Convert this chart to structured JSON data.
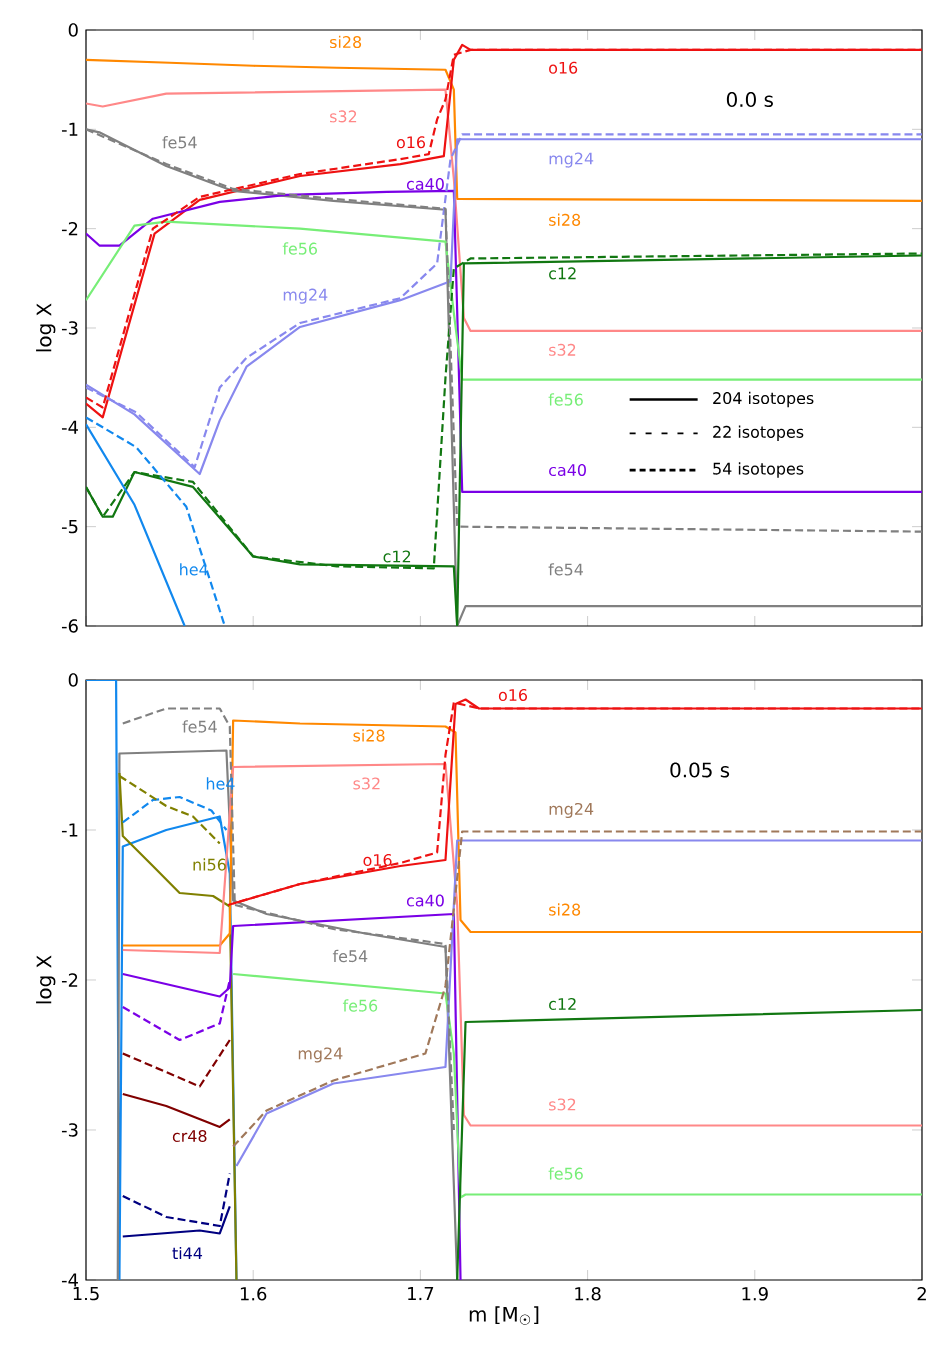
{
  "chart_data": [
    {
      "type": "line",
      "ylabel": "log X",
      "xlim": [
        1.5,
        2
      ],
      "ylim": [
        -6,
        0
      ],
      "xticks": [
        1.5,
        1.6,
        1.7,
        1.8,
        1.9,
        2
      ],
      "yticks": [
        0,
        -1,
        -2,
        -3,
        -4,
        -5,
        -6
      ],
      "tick_labels": "y",
      "annotations": [
        "0.0 s",
        "204 isotopes",
        "22 isotopes",
        "54 isotopes"
      ],
      "series": [
        {
          "name": "si28",
          "color": "#ff8800",
          "line_style": "solid",
          "x": [
            1.5,
            1.55,
            1.6,
            1.65,
            1.715,
            1.72,
            1.722,
            2
          ],
          "values": [
            -0.3,
            -0.33,
            -0.36,
            -0.38,
            -0.4,
            -0.6,
            -1.7,
            -1.72
          ]
        },
        {
          "name": "s32",
          "color": "#ff8888",
          "line_style": "solid",
          "x": [
            1.5,
            1.51,
            1.548,
            1.715,
            1.72,
            1.726,
            1.73,
            2
          ],
          "values": [
            -0.74,
            -0.77,
            -0.64,
            -0.6,
            -1.5,
            -2.9,
            -3.03,
            -3.03
          ]
        },
        {
          "name": "o16",
          "color": "#ee1111",
          "line_style": "solid",
          "x": [
            1.5,
            1.51,
            1.541,
            1.568,
            1.628,
            1.688,
            1.714,
            1.72,
            1.725,
            1.73,
            2
          ],
          "values": [
            -3.76,
            -3.9,
            -2.05,
            -1.71,
            -1.47,
            -1.35,
            -1.27,
            -0.3,
            -0.15,
            -0.2,
            -0.2
          ]
        },
        {
          "name": "fe54",
          "color": "#808080",
          "line_style": "solid",
          "x": [
            1.5,
            1.508,
            1.548,
            1.588,
            1.648,
            1.715,
            1.722,
            1.727,
            2
          ],
          "values": [
            -1.0,
            -1.03,
            -1.37,
            -1.62,
            -1.72,
            -1.81,
            -6,
            -5.8,
            -5.8
          ]
        },
        {
          "name": "ca40",
          "color": "#7a00e6",
          "line_style": "solid",
          "x": [
            1.5,
            1.508,
            1.52,
            1.54,
            1.58,
            1.62,
            1.68,
            1.72,
            1.725,
            2
          ],
          "values": [
            -2.05,
            -2.17,
            -2.17,
            -1.9,
            -1.73,
            -1.66,
            -1.63,
            -1.62,
            -4.65,
            -4.65
          ]
        },
        {
          "name": "fe56",
          "color": "#77ee77",
          "line_style": "solid",
          "x": [
            1.5,
            1.529,
            1.548,
            1.628,
            1.715,
            1.72,
            1.725,
            2
          ],
          "values": [
            -2.72,
            -1.97,
            -1.93,
            -2.0,
            -2.13,
            -2.85,
            -3.52,
            -3.52
          ]
        },
        {
          "name": "mg24",
          "color": "#8888ee",
          "line_style": "solid",
          "x": [
            1.5,
            1.529,
            1.568,
            1.58,
            1.596,
            1.628,
            1.688,
            1.718,
            1.722,
            2
          ],
          "values": [
            -3.57,
            -3.87,
            -4.47,
            -3.93,
            -3.39,
            -2.99,
            -2.72,
            -2.53,
            -1.1,
            -1.1
          ]
        },
        {
          "name": "c12",
          "color": "#117711",
          "line_style": "solid",
          "x": [
            1.5,
            1.51,
            1.516,
            1.529,
            1.564,
            1.6,
            1.628,
            1.72,
            1.722,
            1.726,
            2
          ],
          "values": [
            -4.6,
            -4.9,
            -4.9,
            -4.45,
            -4.6,
            -5.3,
            -5.38,
            -5.4,
            -6,
            -2.35,
            -2.27
          ]
        },
        {
          "name": "he4",
          "color": "#1188ee",
          "line_style": "solid",
          "x": [
            1.5,
            1.529,
            1.559
          ],
          "values": [
            -3.97,
            -4.78,
            -6
          ]
        },
        {
          "color": "#ee1111",
          "line_style": "dashed",
          "x": [
            1.5,
            1.51,
            1.54,
            1.568,
            1.628,
            1.688,
            1.705,
            1.71,
            1.715,
            1.72,
            1.73,
            2
          ],
          "values": [
            -3.7,
            -3.8,
            -2.0,
            -1.68,
            -1.45,
            -1.3,
            -1.25,
            -0.9,
            -0.7,
            -0.25,
            -0.2,
            -0.2
          ]
        },
        {
          "color": "#117711",
          "line_style": "dashed",
          "x": [
            1.5,
            1.51,
            1.529,
            1.564,
            1.6,
            1.65,
            1.708,
            1.715,
            1.72,
            1.73,
            2
          ],
          "values": [
            -4.6,
            -4.9,
            -4.45,
            -4.55,
            -5.3,
            -5.4,
            -5.42,
            -3.5,
            -2.4,
            -2.3,
            -2.25
          ]
        },
        {
          "color": "#1188ee",
          "line_style": "dashed",
          "x": [
            1.5,
            1.53,
            1.56,
            1.583
          ],
          "values": [
            -3.9,
            -4.2,
            -4.8,
            -6
          ]
        },
        {
          "color": "#8888ee",
          "line_style": "dashed",
          "x": [
            1.5,
            1.53,
            1.565,
            1.58,
            1.596,
            1.628,
            1.688,
            1.71,
            1.718,
            1.725,
            2
          ],
          "values": [
            -3.6,
            -3.85,
            -4.4,
            -3.6,
            -3.3,
            -2.95,
            -2.7,
            -2.35,
            -1.3,
            -1.05,
            -1.05
          ]
        },
        {
          "color": "#808080",
          "line_style": "dashed",
          "x": [
            1.5,
            1.548,
            1.588,
            1.648,
            1.715,
            1.722,
            2
          ],
          "values": [
            -1.0,
            -1.35,
            -1.6,
            -1.7,
            -1.8,
            -5.0,
            -5.05
          ]
        }
      ]
    },
    {
      "type": "line",
      "xlabel": "m [M$_{☉}$]",
      "ylabel": "log X",
      "xlim": [
        1.5,
        2
      ],
      "ylim": [
        -4,
        0
      ],
      "xticks": [
        1.5,
        1.6,
        1.7,
        1.8,
        1.9,
        2
      ],
      "yticks": [
        0,
        -1,
        -2,
        -3,
        -4
      ],
      "annotations": [
        "0.05 s"
      ],
      "series": [
        {
          "name": "he4",
          "color": "#1188ee",
          "line_style": "solid",
          "x": [
            1.5,
            1.518,
            1.52,
            1.522,
            1.548,
            1.58,
            1.586,
            1.59
          ],
          "values": [
            0,
            0,
            -4,
            -1.11,
            -1.0,
            -0.91,
            -1.29,
            -4
          ]
        },
        {
          "name": "fe54",
          "color": "#808080",
          "line_style": "solid",
          "x": [
            1.519,
            1.52,
            1.584,
            1.588,
            1.608,
            1.667,
            1.715,
            1.722
          ],
          "values": [
            -4,
            -0.49,
            -0.47,
            -1.47,
            -1.56,
            -1.69,
            -1.78,
            -4
          ]
        },
        {
          "name": "ni56",
          "color": "#808000",
          "line_style": "solid",
          "x": [
            1.52,
            1.522,
            1.54,
            1.556,
            1.576,
            1.586,
            1.59
          ],
          "values": [
            -0.62,
            -1.04,
            -1.24,
            -1.42,
            -1.44,
            -1.51,
            -4
          ]
        },
        {
          "name": "si28",
          "color": "#ff8800",
          "line_style": "solid",
          "x": [
            1.522,
            1.58,
            1.586,
            1.588,
            1.628,
            1.715,
            1.721,
            1.724,
            1.73,
            2
          ],
          "values": [
            -1.77,
            -1.77,
            -1.69,
            -0.27,
            -0.29,
            -0.31,
            -0.35,
            -1.6,
            -1.68,
            -1.68
          ]
        },
        {
          "name": "s32",
          "color": "#ff8888",
          "line_style": "solid",
          "x": [
            1.522,
            1.58,
            1.588,
            1.715,
            1.722,
            1.726,
            1.73,
            2
          ],
          "values": [
            -1.8,
            -1.82,
            -0.58,
            -0.56,
            -1.5,
            -2.9,
            -2.97,
            -2.97
          ]
        },
        {
          "name": "o16",
          "color": "#ee1111",
          "line_style": "solid",
          "x": [
            1.588,
            1.628,
            1.688,
            1.715,
            1.721,
            1.727,
            1.735,
            2
          ],
          "values": [
            -1.49,
            -1.36,
            -1.24,
            -1.2,
            -0.16,
            -0.13,
            -0.19,
            -0.19
          ]
        },
        {
          "name": "ca40",
          "color": "#7a00e6",
          "line_style": "solid",
          "x": [
            1.522,
            1.58,
            1.586,
            1.588,
            1.72,
            1.724
          ],
          "values": [
            -1.96,
            -2.11,
            -2.05,
            -1.64,
            -1.56,
            -4
          ]
        },
        {
          "name": "fe56",
          "color": "#77ee77",
          "line_style": "solid",
          "x": [
            1.588,
            1.715,
            1.72,
            1.724,
            1.727,
            2
          ],
          "values": [
            -1.96,
            -2.09,
            -2.49,
            -3.45,
            -3.43,
            -3.43
          ]
        },
        {
          "color": "#8888ee",
          "line_style": "solid",
          "x": [
            1.59,
            1.608,
            1.648,
            1.715,
            1.722,
            2
          ],
          "values": [
            -3.24,
            -2.89,
            -2.69,
            -2.58,
            -1.07,
            -1.07
          ]
        },
        {
          "name": "mg24",
          "color": "#a0785a",
          "line_style": "dashed",
          "x": [
            1.588,
            1.608,
            1.648,
            1.703,
            1.715,
            1.725,
            2
          ],
          "values": [
            -3.11,
            -2.87,
            -2.67,
            -2.49,
            -2.04,
            -1.01,
            -1.01
          ]
        },
        {
          "name": "c12",
          "color": "#117711",
          "line_style": "solid",
          "x": [
            1.722,
            1.727,
            2
          ],
          "values": [
            -4,
            -2.28,
            -2.2
          ]
        },
        {
          "name": "cr48",
          "color": "#800000",
          "line_style": "solid",
          "x": [
            1.522,
            1.548,
            1.58,
            1.586
          ],
          "values": [
            -2.76,
            -2.84,
            -2.98,
            -2.93
          ]
        },
        {
          "name": "ti44",
          "color": "#000080",
          "line_style": "solid",
          "x": [
            1.522,
            1.568,
            1.58,
            1.586
          ],
          "values": [
            -3.71,
            -3.67,
            -3.69,
            -3.51
          ]
        },
        {
          "color": "#1188ee",
          "line_style": "dashed",
          "x": [
            1.522,
            1.54,
            1.556,
            1.575,
            1.584
          ],
          "values": [
            -0.95,
            -0.8,
            -0.78,
            -0.87,
            -1.0
          ]
        },
        {
          "color": "#808080",
          "line_style": "dashed",
          "x": [
            1.522,
            1.548,
            1.58,
            1.586,
            1.589,
            1.648,
            1.715,
            1.72
          ],
          "values": [
            -0.29,
            -0.19,
            -0.19,
            -0.31,
            -1.5,
            -1.66,
            -1.76,
            -3
          ]
        },
        {
          "color": "#808000",
          "line_style": "dashed",
          "x": [
            1.52,
            1.548,
            1.564,
            1.58
          ],
          "values": [
            -0.64,
            -0.84,
            -0.91,
            -1.09
          ]
        },
        {
          "color": "#7a00e6",
          "line_style": "dashed",
          "x": [
            1.522,
            1.556,
            1.58,
            1.586
          ],
          "values": [
            -2.18,
            -2.4,
            -2.29,
            -2.0
          ]
        },
        {
          "color": "#800000",
          "line_style": "dashed",
          "x": [
            1.522,
            1.568,
            1.586
          ],
          "values": [
            -2.49,
            -2.71,
            -2.4
          ]
        },
        {
          "color": "#000080",
          "line_style": "dashed",
          "x": [
            1.522,
            1.548,
            1.58,
            1.586
          ],
          "values": [
            -3.44,
            -3.58,
            -3.64,
            -3.29
          ]
        },
        {
          "color": "#ee1111",
          "line_style": "dashed",
          "x": [
            1.585,
            1.628,
            1.688,
            1.71,
            1.715,
            1.72,
            1.735,
            2
          ],
          "values": [
            -1.5,
            -1.36,
            -1.22,
            -1.15,
            -0.5,
            -0.15,
            -0.19,
            -0.19
          ]
        }
      ]
    }
  ]
}
